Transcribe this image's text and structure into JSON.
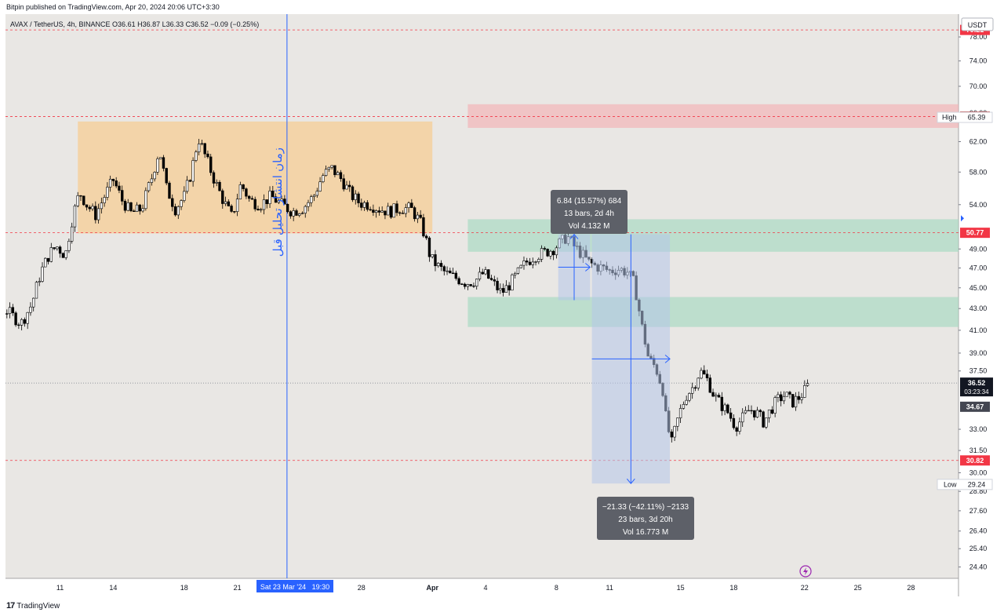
{
  "header": {
    "published": "Bitpin published on TradingView.com, Apr 20, 2024 20:06 UTC+3:30",
    "symbol_line": "AVAX / TetherUS, 4h, BINANCE  O36.61  H36.87  L36.33  C36.52  −0.09 (−0.25%)",
    "currency": "USDT"
  },
  "annotation_vertical": "زمان انتشار تحلیل قبل",
  "footer": {
    "brand": "TradingView"
  },
  "colors": {
    "background": "#e9e7e4",
    "up": "#ffffff",
    "down": "#000000",
    "range_box": "#f5cd95",
    "resistance": "#f4b0b3",
    "support": "#a6d8c0",
    "measure": "#b5c6ea",
    "vline": "#2962ff",
    "red_label": "#f23645"
  },
  "tooltips": {
    "up": {
      "line1": "6.84 (15.57%) 684",
      "line2": "13 bars, 2d 4h",
      "line3": "Vol 4.132 M"
    },
    "down": {
      "line1": "−21.33 (−42.11%) −2133",
      "line2": "23 bars, 3d 20h",
      "line3": "Vol 16.773 M"
    }
  },
  "price_labels": {
    "p7921": "79.21",
    "p6550": "65.50",
    "high_tag": "High",
    "high": "65.39",
    "p5077": "50.77",
    "last": "36.52",
    "countdown": "03:23:34",
    "p3467": "34.67",
    "p3082": "30.82",
    "low_tag": "Low",
    "low": "29.24"
  },
  "x_marker": "Sat 23 Mar '24   19:30",
  "chart_data": {
    "type": "candlestick",
    "symbol": "AVAX / TetherUS",
    "interval": "4h",
    "exchange": "BINANCE",
    "y_scale": "log",
    "ylim": [
      23.8,
      82
    ],
    "y_ticks": [
      "78.00",
      "74.00",
      "70.00",
      "66.00",
      "62.00",
      "58.00",
      "54.00",
      "49.00",
      "47.00",
      "45.00",
      "43.00",
      "41.00",
      "39.00",
      "37.50",
      "33.00",
      "31.50",
      "30.00",
      "28.80",
      "27.60",
      "26.40",
      "25.40",
      "24.40"
    ],
    "x_ticks": [
      {
        "label": "11",
        "day": 11
      },
      {
        "label": "14",
        "day": 14
      },
      {
        "label": "18",
        "day": 18
      },
      {
        "label": "21",
        "day": 21
      },
      {
        "label": "28",
        "day": 28
      },
      {
        "label": "Apr",
        "day": 32
      },
      {
        "label": "4",
        "day": 35
      },
      {
        "label": "8",
        "day": 39
      },
      {
        "label": "11",
        "day": 42
      },
      {
        "label": "15",
        "day": 46
      },
      {
        "label": "18",
        "day": 49
      },
      {
        "label": "22",
        "day": 53
      },
      {
        "label": "25",
        "day": 56
      },
      {
        "label": "28",
        "day": 59
      }
    ],
    "path_points": [
      [
        4.0,
        43.5
      ],
      [
        4.8,
        42.5
      ],
      [
        5.6,
        42.2
      ],
      [
        6.4,
        42.6
      ],
      [
        7.2,
        43.0
      ],
      [
        8.0,
        42.8
      ],
      [
        8.8,
        41.6
      ],
      [
        9.4,
        43.4
      ],
      [
        9.9,
        46.5
      ],
      [
        10.4,
        48.5
      ],
      [
        10.8,
        49.3
      ],
      [
        11.3,
        48.3
      ],
      [
        11.7,
        52.5
      ],
      [
        12.1,
        55.5
      ],
      [
        12.5,
        54.0
      ],
      [
        13.0,
        52.8
      ],
      [
        13.5,
        55.0
      ],
      [
        14.0,
        57.0
      ],
      [
        14.5,
        54.5
      ],
      [
        15.0,
        53.0
      ],
      [
        15.6,
        53.5
      ],
      [
        16.2,
        57.5
      ],
      [
        16.6,
        61.0
      ],
      [
        17.0,
        56.0
      ],
      [
        17.5,
        53.5
      ],
      [
        18.0,
        55.0
      ],
      [
        18.4,
        58.0
      ],
      [
        18.8,
        62.5
      ],
      [
        19.2,
        60.0
      ],
      [
        19.7,
        57.0
      ],
      [
        20.2,
        54.5
      ],
      [
        20.7,
        52.5
      ],
      [
        21.2,
        56.5
      ],
      [
        21.7,
        54.5
      ],
      [
        22.3,
        54.0
      ],
      [
        22.9,
        55.0
      ],
      [
        23.5,
        54.0
      ],
      [
        24.1,
        53.2
      ],
      [
        24.7,
        53.6
      ],
      [
        25.3,
        55.0
      ],
      [
        25.8,
        57.5
      ],
      [
        26.3,
        58.5
      ],
      [
        26.9,
        57.0
      ],
      [
        27.4,
        55.2
      ],
      [
        27.9,
        54.2
      ],
      [
        28.5,
        54.0
      ],
      [
        29.0,
        53.5
      ],
      [
        29.6,
        53.2
      ],
      [
        30.2,
        53.6
      ],
      [
        30.8,
        53.5
      ],
      [
        31.3,
        52.0
      ],
      [
        31.6,
        50.3
      ],
      [
        31.9,
        48.0
      ],
      [
        32.3,
        47.2
      ],
      [
        32.8,
        46.4
      ],
      [
        33.3,
        46.0
      ],
      [
        33.9,
        45.5
      ],
      [
        34.4,
        45.7
      ],
      [
        34.9,
        46.5
      ],
      [
        35.4,
        45.5
      ],
      [
        35.9,
        44.5
      ],
      [
        36.3,
        45.2
      ],
      [
        36.8,
        46.4
      ],
      [
        37.3,
        47.6
      ],
      [
        37.8,
        48.3
      ],
      [
        38.3,
        48.6
      ],
      [
        38.8,
        49.0
      ],
      [
        39.3,
        49.8
      ],
      [
        39.6,
        50.4
      ],
      [
        40.0,
        49.3
      ],
      [
        40.4,
        48.5
      ],
      [
        40.8,
        47.6
      ],
      [
        41.2,
        47.2
      ],
      [
        41.6,
        47.0
      ],
      [
        42.0,
        46.7
      ],
      [
        42.5,
        46.9
      ],
      [
        43.0,
        46.6
      ],
      [
        43.4,
        45.4
      ],
      [
        43.8,
        41.5
      ],
      [
        44.2,
        38.5
      ],
      [
        44.6,
        37.8
      ],
      [
        45.0,
        36.0
      ],
      [
        45.2,
        33.5
      ],
      [
        45.5,
        32.0
      ],
      [
        45.9,
        34.0
      ],
      [
        46.3,
        35.5
      ],
      [
        46.7,
        36.2
      ],
      [
        47.1,
        37.5
      ],
      [
        47.5,
        36.8
      ],
      [
        47.9,
        35.5
      ],
      [
        48.3,
        34.8
      ],
      [
        48.7,
        34.2
      ],
      [
        49.1,
        33.2
      ],
      [
        49.5,
        33.8
      ],
      [
        49.9,
        34.5
      ],
      [
        50.3,
        34.2
      ],
      [
        50.7,
        33.5
      ],
      [
        51.1,
        34.5
      ],
      [
        51.5,
        35.2
      ],
      [
        51.9,
        35.6
      ],
      [
        52.3,
        35.0
      ],
      [
        52.7,
        35.4
      ],
      [
        53.0,
        35.9
      ],
      [
        53.3,
        36.52
      ]
    ],
    "annotations": [
      {
        "type": "range_box",
        "x": [
          12,
          32
        ],
        "y": [
          50.7,
          64.8
        ]
      },
      {
        "type": "resistance_zone",
        "x": [
          34,
          65
        ],
        "y": [
          63.9,
          67.3
        ]
      },
      {
        "type": "support_zone",
        "x": [
          34,
          65
        ],
        "y": [
          48.7,
          52.3
        ]
      },
      {
        "type": "support_zone",
        "x": [
          34,
          65
        ],
        "y": [
          41.3,
          44.1
        ]
      },
      {
        "type": "price_range",
        "x": [
          39.1,
          40.9
        ],
        "from": 43.8,
        "to": 50.6,
        "label": "6.84 (15.57%) 684"
      },
      {
        "type": "price_range",
        "x": [
          41.0,
          45.4
        ],
        "from": 50.6,
        "to": 29.3,
        "label": "−21.33 (−42.11%) −2133"
      },
      {
        "type": "vertical_line",
        "x": 23.8,
        "label": "Sat 23 Mar '24 19:30"
      },
      {
        "type": "hline",
        "y": 79.21
      },
      {
        "type": "hline",
        "y": 65.5
      },
      {
        "type": "hline",
        "y": 50.77
      },
      {
        "type": "hline",
        "y": 30.82
      },
      {
        "type": "hline",
        "y": 36.52,
        "dotted": true
      }
    ],
    "last": 36.52,
    "high": 65.39,
    "low": 29.24
  }
}
